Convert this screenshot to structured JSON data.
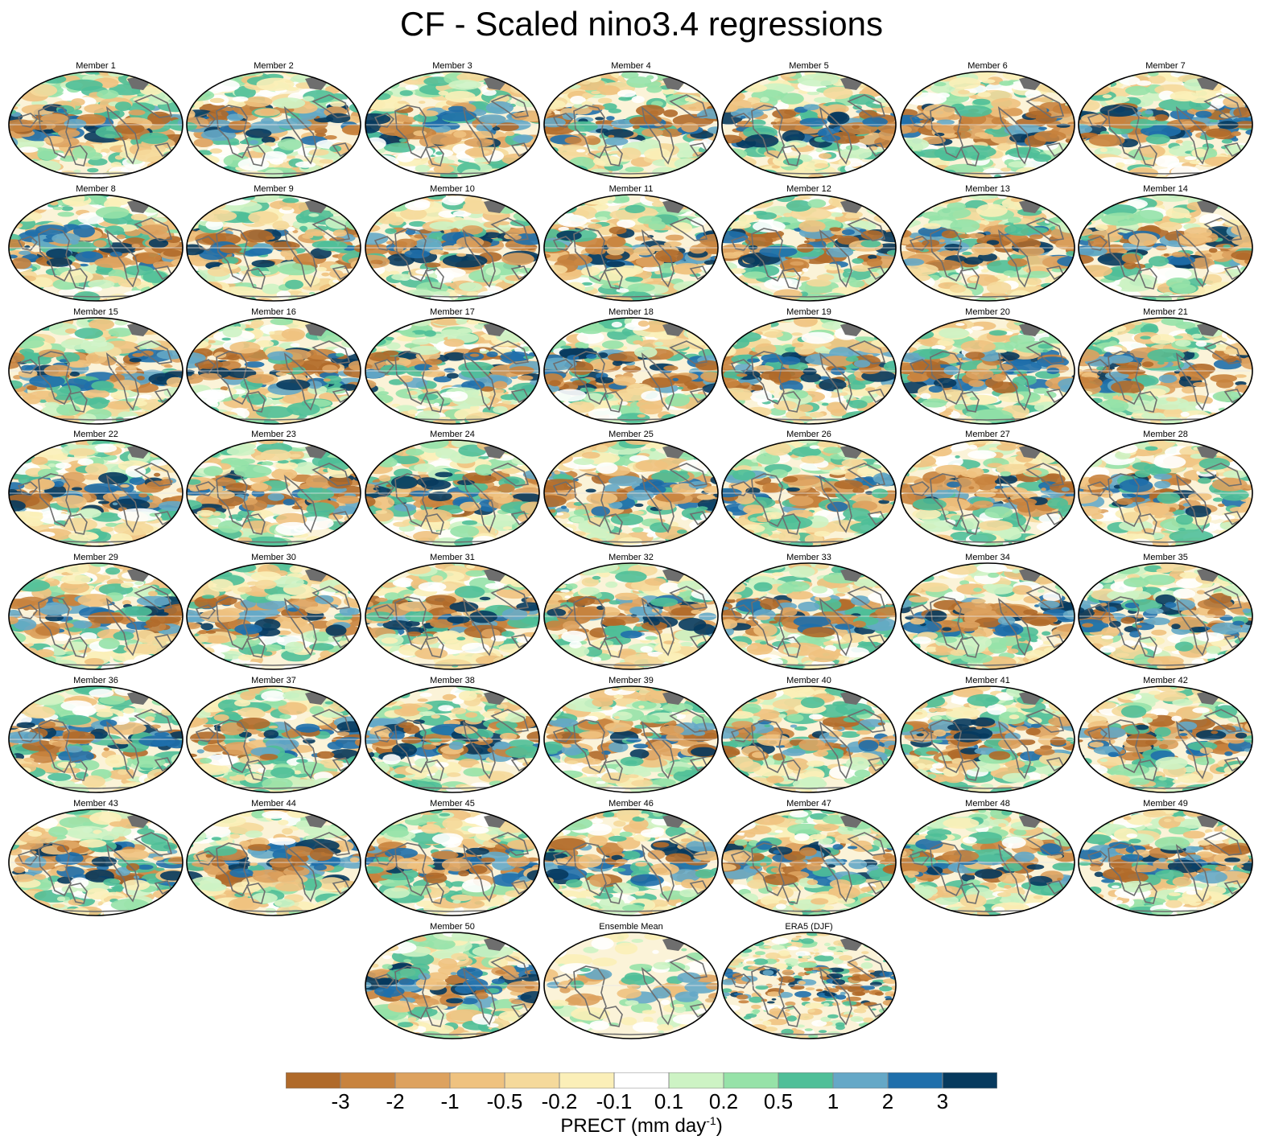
{
  "title": "CF - Scaled nino3.4 regressions",
  "panels": [
    "Member 1",
    "Member 2",
    "Member 3",
    "Member 4",
    "Member 5",
    "Member 6",
    "Member 7",
    "Member 8",
    "Member 9",
    "Member 10",
    "Member 11",
    "Member 12",
    "Member 13",
    "Member 14",
    "Member 15",
    "Member 16",
    "Member 17",
    "Member 18",
    "Member 19",
    "Member 20",
    "Member 21",
    "Member 22",
    "Member 23",
    "Member 24",
    "Member 25",
    "Member 26",
    "Member 27",
    "Member 28",
    "Member 29",
    "Member 30",
    "Member 31",
    "Member 32",
    "Member 33",
    "Member 34",
    "Member 35",
    "Member 36",
    "Member 37",
    "Member 38",
    "Member 39",
    "Member 40",
    "Member 41",
    "Member 42",
    "Member 43",
    "Member 44",
    "Member 45",
    "Member 46",
    "Member 47",
    "Member 48",
    "Member 49",
    "Member 50",
    "Ensemble Mean",
    "ERA5 (DJF)"
  ],
  "colorbar": {
    "labels": [
      "-3",
      "-2",
      "-1",
      "-0.5",
      "-0.2",
      "-0.1",
      "0.1",
      "0.2",
      "0.5",
      "1",
      "2",
      "3"
    ],
    "colors": [
      "#b06a2a",
      "#c8833e",
      "#dda25f",
      "#efc27f",
      "#f5d99b",
      "#fbefb8",
      "#ffffff",
      "#cdf3c4",
      "#96e2a8",
      "#4fbf98",
      "#65a8c7",
      "#1f6fab",
      "#073a5e"
    ],
    "units_main": "PRECT (mm day",
    "units_sup": "-1",
    "units_close": ")"
  },
  "map_style": {
    "land_color": "#6e6e6e",
    "border_color": "#000000"
  }
}
